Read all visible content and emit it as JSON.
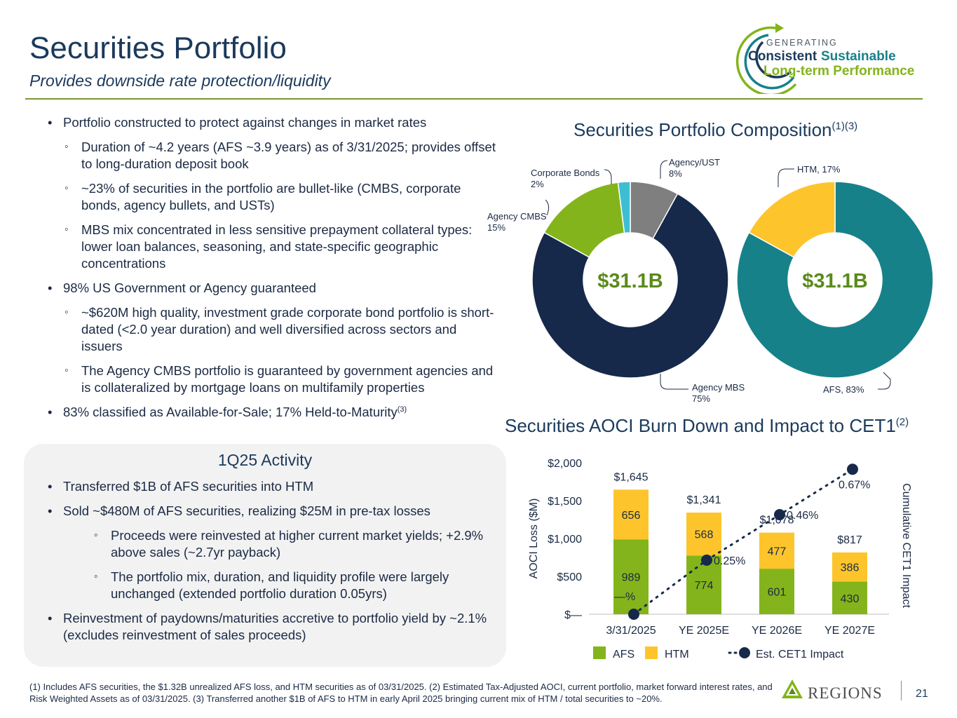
{
  "header": {
    "title": "Securities Portfolio",
    "subtitle": "Provides downside rate protection/liquidity"
  },
  "logo": {
    "line1": "GENERATING",
    "line2a": "Consistent",
    "line2b": "Sustainable",
    "line3": "Long-term Performance"
  },
  "bullets": {
    "b1": "Portfolio constructed to protect against changes in market rates",
    "b1_s1": "Duration of  ~4.2 years (AFS ~3.9 years) as of 3/31/2025; provides offset to long-duration deposit book",
    "b1_s2": "~23% of securities in the portfolio are bullet-like (CMBS, corporate bonds, agency bullets, and USTs)",
    "b1_s3": "MBS mix concentrated in less sensitive prepayment collateral types: lower loan balances, seasoning, and state-specific geographic concentrations",
    "b2": "98% US Government or Agency guaranteed",
    "b2_s1": "~$620M high quality, investment grade corporate bond portfolio is short-dated (<2.0 year duration) and well diversified across sectors and issuers",
    "b2_s2": "The Agency CMBS portfolio is guaranteed by government agencies and is collateralized by mortgage loans on multifamily properties",
    "b3": "83% classified as Available-for-Sale; 17% Held-to-Maturity",
    "b3_sup": "(3)"
  },
  "activity": {
    "title": "1Q25 Activity",
    "a1": "Transferred $1B of AFS securities into HTM",
    "a2": "Sold ~$480M of AFS securities, realizing $25M in pre-tax losses",
    "a2_s1": "Proceeds were reinvested at higher current market yields; +2.9% above sales (~2.7yr payback)",
    "a2_s2": "The portfolio mix, duration, and liquidity profile were largely unchanged (extended portfolio duration 0.05yrs)",
    "a3": "Reinvestment of paydowns/maturities accretive to portfolio yield by ~2.1% (excludes reinvestment of sales proceeds)"
  },
  "composition": {
    "title": "Securities Portfolio Composition",
    "title_sup": "(1)(3)"
  },
  "aoci": {
    "title": "Securities AOCI Burn Down and Impact to CET1",
    "title_sup": "(2)"
  },
  "colors": {
    "navy": "#16294a",
    "green": "#84b41b",
    "teal": "#17818a",
    "yellow": "#fdc52b",
    "gray": "#7f7f7f",
    "cyan": "#3dbed3",
    "dark_blue": "#1b3a5c"
  },
  "chart_data": [
    {
      "type": "pie",
      "title": "Securities Portfolio Composition",
      "center_label": "$31.1B",
      "slices": [
        {
          "label": "Agency MBS",
          "pct_label": "75%",
          "value": 75,
          "color": "#16294a"
        },
        {
          "label": "Agency CMBS",
          "pct_label": "15%",
          "value": 15,
          "color": "#84b41b"
        },
        {
          "label": "Corporate Bonds",
          "pct_label": "2%",
          "value": 2,
          "color": "#3dbed3"
        },
        {
          "label": "Agency/UST",
          "pct_label": "8%",
          "value": 8,
          "color": "#7f7f7f"
        }
      ]
    },
    {
      "type": "pie",
      "title": "",
      "center_label": "$31.1B",
      "slices": [
        {
          "label": "AFS, 83%",
          "value": 83,
          "color": "#17818a"
        },
        {
          "label": "HTM, 17%",
          "value": 17,
          "color": "#fdc52b"
        }
      ]
    },
    {
      "type": "bar",
      "title": "Securities AOCI Burn Down and Impact to CET1",
      "categories": [
        "3/31/2025",
        "YE 2025E",
        "YE 2026E",
        "YE 2027E"
      ],
      "series": [
        {
          "name": "AFS",
          "values": [
            989,
            774,
            601,
            430
          ],
          "labels": [
            "989",
            "774",
            "601",
            "430"
          ],
          "color": "#84b41b"
        },
        {
          "name": "HTM",
          "values": [
            656,
            568,
            477,
            386
          ],
          "labels": [
            "656",
            "568",
            "477",
            "386"
          ],
          "color": "#fdc52b"
        }
      ],
      "totals": [
        "$1,645",
        "$1,341",
        "$1,078",
        "$817"
      ],
      "line": {
        "name": "Est. CET1 Impact",
        "values": [
          0,
          0.25,
          0.46,
          0.67
        ],
        "labels": [
          "—%",
          "0.25%",
          "0.46%",
          "0.67%"
        ],
        "ylim": [
          0,
          0.7
        ]
      },
      "ylabel": "AOCI Loss ($M)",
      "y2label": "Cumulative CET1 Impact",
      "ylim": [
        0,
        2000
      ],
      "yticks": [
        0,
        500,
        1000,
        1500,
        2000
      ],
      "ytick_labels": [
        "$—",
        "$500",
        "$1,000",
        "$1,500",
        "$2,000"
      ],
      "legend": [
        "AFS",
        "HTM",
        "Est. CET1 Impact"
      ]
    }
  ],
  "footer": {
    "footnote": "(1) Includes AFS securities, the $1.32B unrealized AFS loss, and HTM securities as of 03/31/2025.  (2) Estimated Tax-Adjusted AOCI, current portfolio, market forward interest rates, and Risk Weighted Assets as of  03/31/2025. (3) Transferred another $1B of AFS to HTM in early April 2025 bringing current mix of HTM / total securities to ~20%.",
    "brand": "REGIONS",
    "page": "21"
  }
}
